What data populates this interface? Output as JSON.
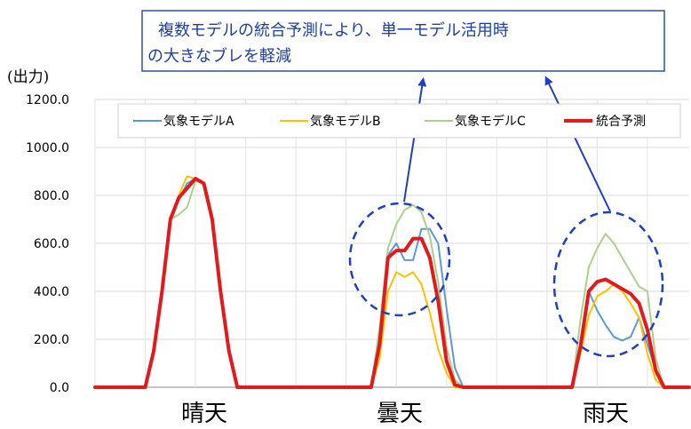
{
  "chart_data": {
    "type": "line",
    "ylabel": "(出力)",
    "ylim": [
      0,
      1200
    ],
    "yticks": [
      "1200.0",
      "1000.0",
      "800.0",
      "600.0",
      "400.0",
      "200.0",
      "0.0"
    ],
    "ytick_values": [
      1200,
      1000,
      800,
      600,
      400,
      200,
      0
    ],
    "grid": true,
    "legend_position": "top-right",
    "categories": [
      "晴天",
      "曇天",
      "雨天"
    ],
    "x": [
      0,
      1,
      2,
      3,
      4,
      5,
      6,
      7,
      8,
      9,
      10,
      11,
      12,
      13,
      14,
      15,
      16,
      17,
      18,
      19,
      20,
      21,
      22,
      23,
      24,
      25,
      26,
      27,
      28,
      29,
      30,
      31,
      32,
      33,
      34,
      35,
      36,
      37,
      38,
      39,
      40,
      41,
      42,
      43,
      44,
      45,
      46,
      47,
      48,
      49,
      50,
      51,
      52,
      53,
      54,
      55,
      56,
      57,
      58,
      59,
      60,
      61,
      62,
      63,
      64,
      65,
      66,
      67,
      68,
      69,
      70,
      71
    ],
    "series": [
      {
        "name": "気象モデルA",
        "color": "#5b9bd5",
        "width": 2,
        "values": [
          0,
          0,
          0,
          0,
          0,
          0,
          0,
          150,
          400,
          700,
          780,
          850,
          870,
          850,
          700,
          400,
          150,
          0,
          0,
          0,
          0,
          0,
          0,
          0,
          0,
          0,
          0,
          0,
          0,
          0,
          0,
          0,
          0,
          0,
          180,
          550,
          600,
          530,
          530,
          660,
          660,
          600,
          330,
          80,
          0,
          0,
          0,
          0,
          0,
          0,
          0,
          0,
          0,
          0,
          0,
          0,
          0,
          0,
          160,
          400,
          320,
          260,
          210,
          195,
          210,
          290,
          180,
          70,
          0,
          0,
          0,
          0
        ]
      },
      {
        "name": "気象モデルB",
        "color": "#ffc000",
        "width": 2,
        "values": [
          0,
          0,
          0,
          0,
          0,
          0,
          0,
          150,
          400,
          700,
          800,
          880,
          870,
          850,
          700,
          400,
          150,
          0,
          0,
          0,
          0,
          0,
          0,
          0,
          0,
          0,
          0,
          0,
          0,
          0,
          0,
          0,
          0,
          0,
          120,
          400,
          480,
          460,
          480,
          430,
          310,
          160,
          60,
          0,
          0,
          0,
          0,
          0,
          0,
          0,
          0,
          0,
          0,
          0,
          0,
          0,
          0,
          0,
          140,
          300,
          380,
          400,
          430,
          400,
          350,
          290,
          140,
          30,
          0,
          0,
          0,
          0
        ]
      },
      {
        "name": "気象モデルC",
        "color": "#a9d18e",
        "width": 2,
        "values": [
          0,
          0,
          0,
          0,
          0,
          0,
          0,
          150,
          400,
          700,
          720,
          750,
          860,
          850,
          700,
          400,
          150,
          0,
          0,
          0,
          0,
          0,
          0,
          0,
          0,
          0,
          0,
          0,
          0,
          0,
          0,
          0,
          0,
          0,
          250,
          580,
          680,
          740,
          760,
          730,
          630,
          440,
          170,
          30,
          0,
          0,
          0,
          0,
          0,
          0,
          0,
          0,
          0,
          0,
          0,
          0,
          0,
          0,
          280,
          500,
          580,
          640,
          600,
          540,
          480,
          420,
          400,
          120,
          0,
          0,
          0,
          0
        ]
      },
      {
        "name": "統合予測",
        "color": "#e31a1c",
        "width": 4,
        "values": [
          0,
          0,
          0,
          0,
          0,
          0,
          0,
          150,
          400,
          700,
          790,
          830,
          870,
          850,
          700,
          400,
          150,
          0,
          0,
          0,
          0,
          0,
          0,
          0,
          0,
          0,
          0,
          0,
          0,
          0,
          0,
          0,
          0,
          0,
          180,
          540,
          570,
          570,
          620,
          620,
          540,
          360,
          110,
          10,
          0,
          0,
          0,
          0,
          0,
          0,
          0,
          0,
          0,
          0,
          0,
          0,
          0,
          0,
          170,
          400,
          440,
          450,
          430,
          410,
          390,
          350,
          240,
          70,
          0,
          0,
          0,
          0
        ]
      }
    ],
    "annotation": "複数モデルの統合予測により、単一モデル活用時の大きなブレを軽減",
    "annotation_lines": [
      "複数モデルの統合予測により、単一モデル活用時",
      "の大きなブレを軽減"
    ],
    "annotation_color": "#1f3fa0"
  }
}
